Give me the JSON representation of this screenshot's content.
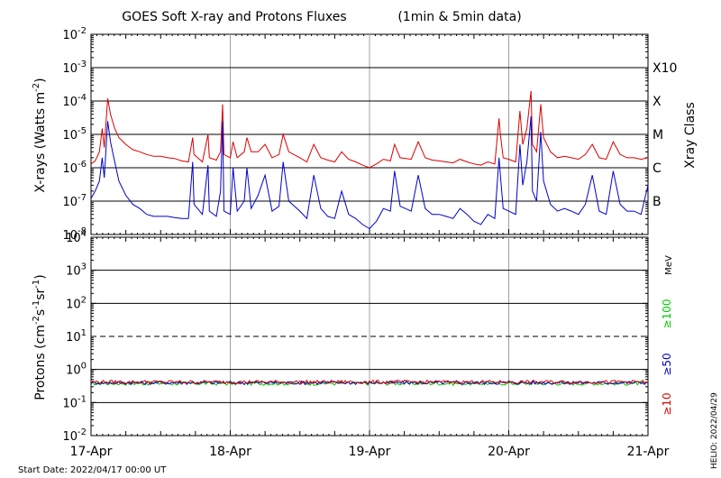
{
  "chart_data": [
    {
      "type": "line",
      "title": "GOES Soft X-ray and Protons Fluxes",
      "title_note": "(1min & 5min data)",
      "ylabel_main": "X-rays (Watts m",
      "ylabel_exp": "-2",
      "ylabel_close": ")",
      "y_scale": "log",
      "ylim": [
        1e-08,
        0.01
      ],
      "y_ticks": [
        {
          "value": 0.01,
          "base": "10",
          "exp": "-2"
        },
        {
          "value": 0.001,
          "base": "10",
          "exp": "-3"
        },
        {
          "value": 0.0001,
          "base": "10",
          "exp": "-4"
        },
        {
          "value": 1e-05,
          "base": "10",
          "exp": "-5"
        },
        {
          "value": 1e-06,
          "base": "10",
          "exp": "-6"
        },
        {
          "value": 1e-07,
          "base": "10",
          "exp": "-7"
        },
        {
          "value": 1e-08,
          "base": "10",
          "exp": "-8"
        }
      ],
      "right_axis_title": "Xray Class",
      "class_labels": [
        {
          "label": "X10",
          "value": 0.001
        },
        {
          "label": "X",
          "value": 0.0001
        },
        {
          "label": "M",
          "value": 1e-05
        },
        {
          "label": "C",
          "value": 1e-06
        },
        {
          "label": "B",
          "value": 1e-07
        }
      ],
      "grid": true,
      "x_range_days": [
        0,
        4
      ],
      "series": [
        {
          "color": "#dd0000",
          "points": [
            [
              0,
              1.3e-06
            ],
            [
              0.03,
              1.6e-06
            ],
            [
              0.06,
              3e-06
            ],
            [
              0.08,
              1.5e-05
            ],
            [
              0.095,
              4e-06
            ],
            [
              0.12,
              0.00012
            ],
            [
              0.14,
              4e-05
            ],
            [
              0.17,
              1.5e-05
            ],
            [
              0.2,
              8e-06
            ],
            [
              0.25,
              5e-06
            ],
            [
              0.3,
              3.5e-06
            ],
            [
              0.35,
              3e-06
            ],
            [
              0.4,
              2.5e-06
            ],
            [
              0.45,
              2.2e-06
            ],
            [
              0.5,
              2.2e-06
            ],
            [
              0.55,
              2e-06
            ],
            [
              0.6,
              1.9e-06
            ],
            [
              0.65,
              1.6e-06
            ],
            [
              0.7,
              1.5e-06
            ],
            [
              0.73,
              8e-06
            ],
            [
              0.74,
              2.5e-06
            ],
            [
              0.8,
              1.5e-06
            ],
            [
              0.84,
              1e-05
            ],
            [
              0.85,
              2e-06
            ],
            [
              0.9,
              1.7e-06
            ],
            [
              0.93,
              3e-06
            ],
            [
              0.945,
              8e-05
            ],
            [
              0.955,
              2.5e-06
            ],
            [
              1.0,
              2e-06
            ],
            [
              1.02,
              6e-06
            ],
            [
              1.05,
              2e-06
            ],
            [
              1.1,
              3e-06
            ],
            [
              1.12,
              8e-06
            ],
            [
              1.15,
              3e-06
            ],
            [
              1.2,
              3e-06
            ],
            [
              1.25,
              5e-06
            ],
            [
              1.3,
              2e-06
            ],
            [
              1.35,
              2.5e-06
            ],
            [
              1.38,
              1e-05
            ],
            [
              1.42,
              3e-06
            ],
            [
              1.5,
              2e-06
            ],
            [
              1.55,
              1.5e-06
            ],
            [
              1.6,
              5e-06
            ],
            [
              1.65,
              2e-06
            ],
            [
              1.7,
              1.7e-06
            ],
            [
              1.75,
              1.5e-06
            ],
            [
              1.8,
              3e-06
            ],
            [
              1.85,
              1.8e-06
            ],
            [
              1.9,
              1.5e-06
            ],
            [
              1.95,
              1.2e-06
            ],
            [
              2.0,
              1e-06
            ],
            [
              2.05,
              1.3e-06
            ],
            [
              2.1,
              1.8e-06
            ],
            [
              2.15,
              1.6e-06
            ],
            [
              2.18,
              5e-06
            ],
            [
              2.22,
              2e-06
            ],
            [
              2.3,
              1.8e-06
            ],
            [
              2.35,
              6e-06
            ],
            [
              2.4,
              2e-06
            ],
            [
              2.45,
              1.7e-06
            ],
            [
              2.5,
              1.6e-06
            ],
            [
              2.55,
              1.5e-06
            ],
            [
              2.6,
              1.4e-06
            ],
            [
              2.65,
              1.8e-06
            ],
            [
              2.7,
              1.5e-06
            ],
            [
              2.75,
              1.3e-06
            ],
            [
              2.8,
              1.2e-06
            ],
            [
              2.85,
              1.5e-06
            ],
            [
              2.9,
              1.3e-06
            ],
            [
              2.93,
              3e-05
            ],
            [
              2.94,
              1e-05
            ],
            [
              2.96,
              2e-06
            ],
            [
              3.0,
              1.8e-06
            ],
            [
              3.05,
              1.5e-06
            ],
            [
              3.08,
              5e-05
            ],
            [
              3.1,
              5e-06
            ],
            [
              3.13,
              1.5e-05
            ],
            [
              3.16,
              0.0002
            ],
            [
              3.17,
              5e-06
            ],
            [
              3.2,
              3e-06
            ],
            [
              3.23,
              8e-05
            ],
            [
              3.25,
              8e-06
            ],
            [
              3.3,
              3e-06
            ],
            [
              3.35,
              2e-06
            ],
            [
              3.4,
              2.2e-06
            ],
            [
              3.45,
              2e-06
            ],
            [
              3.5,
              1.8e-06
            ],
            [
              3.55,
              2.5e-06
            ],
            [
              3.6,
              5e-06
            ],
            [
              3.65,
              2e-06
            ],
            [
              3.7,
              1.8e-06
            ],
            [
              3.75,
              6e-06
            ],
            [
              3.8,
              2.5e-06
            ],
            [
              3.85,
              2e-06
            ],
            [
              3.9,
              2e-06
            ],
            [
              3.95,
              1.8e-06
            ],
            [
              4.0,
              2e-06
            ]
          ]
        },
        {
          "color": "#0000cc",
          "points": [
            [
              0,
              1.2e-07
            ],
            [
              0.03,
              2e-07
            ],
            [
              0.06,
              4e-07
            ],
            [
              0.08,
              2e-06
            ],
            [
              0.095,
              5e-07
            ],
            [
              0.12,
              2.5e-05
            ],
            [
              0.14,
              6e-06
            ],
            [
              0.17,
              1.5e-06
            ],
            [
              0.2,
              4e-07
            ],
            [
              0.25,
              1.5e-07
            ],
            [
              0.3,
              8e-08
            ],
            [
              0.35,
              6e-08
            ],
            [
              0.4,
              4e-08
            ],
            [
              0.45,
              3.5e-08
            ],
            [
              0.5,
              3.5e-08
            ],
            [
              0.55,
              3.5e-08
            ],
            [
              0.6,
              3.2e-08
            ],
            [
              0.65,
              3e-08
            ],
            [
              0.7,
              3e-08
            ],
            [
              0.73,
              1.5e-06
            ],
            [
              0.74,
              8e-08
            ],
            [
              0.8,
              4e-08
            ],
            [
              0.84,
              1.2e-06
            ],
            [
              0.85,
              5e-08
            ],
            [
              0.9,
              3.5e-08
            ],
            [
              0.93,
              2e-07
            ],
            [
              0.945,
              2.5e-05
            ],
            [
              0.955,
              5e-08
            ],
            [
              1.0,
              4e-08
            ],
            [
              1.02,
              1e-06
            ],
            [
              1.05,
              5e-08
            ],
            [
              1.1,
              1e-07
            ],
            [
              1.12,
              1e-06
            ],
            [
              1.15,
              6e-08
            ],
            [
              1.2,
              1.5e-07
            ],
            [
              1.25,
              6e-07
            ],
            [
              1.3,
              5e-08
            ],
            [
              1.35,
              7e-08
            ],
            [
              1.38,
              1.5e-06
            ],
            [
              1.42,
              1e-07
            ],
            [
              1.5,
              5e-08
            ],
            [
              1.55,
              3e-08
            ],
            [
              1.6,
              6e-07
            ],
            [
              1.65,
              6e-08
            ],
            [
              1.7,
              3.5e-08
            ],
            [
              1.75,
              3e-08
            ],
            [
              1.8,
              2e-07
            ],
            [
              1.85,
              4e-08
            ],
            [
              1.9,
              3e-08
            ],
            [
              1.95,
              2e-08
            ],
            [
              2.0,
              1.5e-08
            ],
            [
              2.05,
              2.5e-08
            ],
            [
              2.1,
              6e-08
            ],
            [
              2.15,
              5e-08
            ],
            [
              2.18,
              8e-07
            ],
            [
              2.22,
              7e-08
            ],
            [
              2.3,
              5e-08
            ],
            [
              2.35,
              6e-07
            ],
            [
              2.4,
              6e-08
            ],
            [
              2.45,
              4e-08
            ],
            [
              2.5,
              4e-08
            ],
            [
              2.55,
              3.5e-08
            ],
            [
              2.6,
              3e-08
            ],
            [
              2.65,
              6e-08
            ],
            [
              2.7,
              4e-08
            ],
            [
              2.75,
              2.5e-08
            ],
            [
              2.8,
              2e-08
            ],
            [
              2.85,
              4e-08
            ],
            [
              2.9,
              3e-08
            ],
            [
              2.93,
              2e-06
            ],
            [
              2.94,
              6e-07
            ],
            [
              2.96,
              6e-08
            ],
            [
              3.0,
              5e-08
            ],
            [
              3.05,
              4e-08
            ],
            [
              3.08,
              5e-06
            ],
            [
              3.1,
              3e-07
            ],
            [
              3.13,
              1.5e-06
            ],
            [
              3.16,
              3.5e-05
            ],
            [
              3.17,
              2e-07
            ],
            [
              3.2,
              1e-07
            ],
            [
              3.23,
              1.2e-05
            ],
            [
              3.25,
              4e-07
            ],
            [
              3.3,
              8e-08
            ],
            [
              3.35,
              5e-08
            ],
            [
              3.4,
              6e-08
            ],
            [
              3.45,
              5e-08
            ],
            [
              3.5,
              4e-08
            ],
            [
              3.55,
              8e-08
            ],
            [
              3.6,
              6e-07
            ],
            [
              3.65,
              5e-08
            ],
            [
              3.7,
              4e-08
            ],
            [
              3.75,
              8e-07
            ],
            [
              3.8,
              8e-08
            ],
            [
              3.85,
              5e-08
            ],
            [
              3.9,
              5e-08
            ],
            [
              3.95,
              4e-08
            ],
            [
              4.0,
              3e-07
            ]
          ]
        }
      ]
    },
    {
      "type": "line",
      "ylabel_main": "Protons (cm",
      "ylabel_parts": [
        {
          "t": "Protons (cm",
          "sup": false
        },
        {
          "t": "-2",
          "sup": true
        },
        {
          "t": "s",
          "sup": false
        },
        {
          "t": "-1",
          "sup": true
        },
        {
          "t": "sr",
          "sup": false
        },
        {
          "t": "-1",
          "sup": true
        },
        {
          "t": ")",
          "sup": false
        }
      ],
      "y_scale": "log",
      "ylim": [
        0.01,
        10000
      ],
      "y_ticks": [
        {
          "value": 10000,
          "base": "10",
          "exp": "4"
        },
        {
          "value": 1000,
          "base": "10",
          "exp": "3"
        },
        {
          "value": 100,
          "base": "10",
          "exp": "2"
        },
        {
          "value": 10,
          "base": "10",
          "exp": "1"
        },
        {
          "value": 1,
          "base": "10",
          "exp": "0"
        },
        {
          "value": 0.1,
          "base": "10",
          "exp": "-1"
        },
        {
          "value": 0.01,
          "base": "10",
          "exp": "-2"
        }
      ],
      "dashed_level": 10,
      "grid": true,
      "x_range_days": [
        0,
        4
      ],
      "energy_unit": "MeV",
      "series": [
        {
          "name": "≥100",
          "color": "#00cc00",
          "level": 0.38
        },
        {
          "name": "≥50",
          "color": "#0000cc",
          "level": 0.4
        },
        {
          "name": "≥10",
          "color": "#dd0000",
          "level": 0.42
        }
      ]
    }
  ],
  "x_tick_labels": [
    "17-Apr",
    "18-Apr",
    "19-Apr",
    "20-Apr",
    "21-Apr"
  ],
  "start_date_text": "Start Date: 2022/04/17 00:00 UT",
  "helio_text": "HELIO: 2022/04/29"
}
